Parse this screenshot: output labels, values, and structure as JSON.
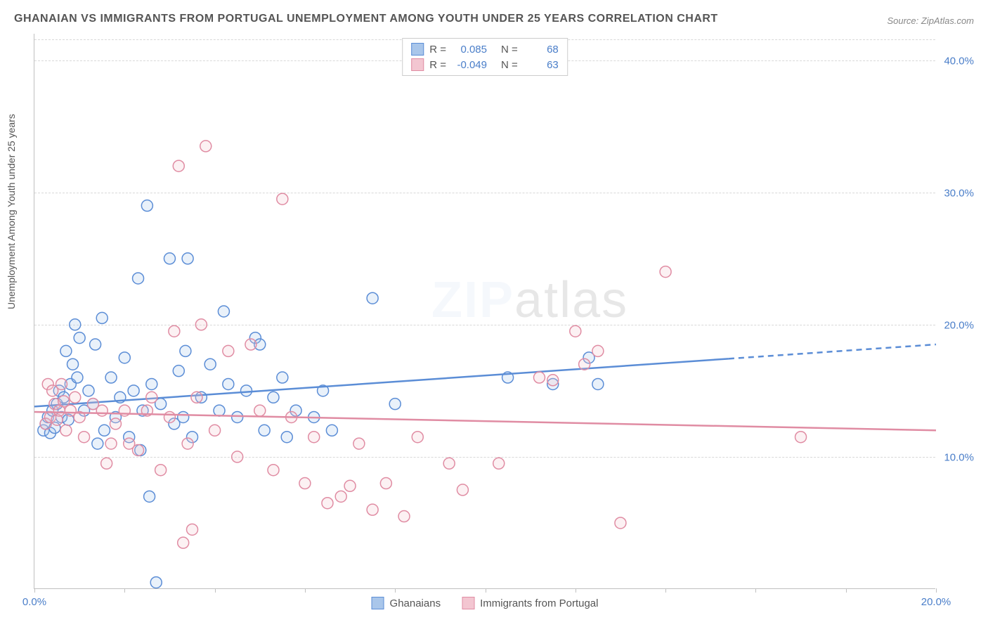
{
  "title": "GHANAIAN VS IMMIGRANTS FROM PORTUGAL UNEMPLOYMENT AMONG YOUTH UNDER 25 YEARS CORRELATION CHART",
  "source_label": "Source: ZipAtlas.com",
  "ylabel": "Unemployment Among Youth under 25 years",
  "watermark_a": "ZIP",
  "watermark_b": "atlas",
  "chart": {
    "type": "scatter",
    "background_color": "#ffffff",
    "grid_color": "#d8d8d8",
    "axis_color": "#c0c0c0",
    "xlim": [
      0,
      20
    ],
    "ylim": [
      0,
      42
    ],
    "x_ticks": [
      0,
      2,
      4,
      6,
      8,
      10,
      12,
      14,
      16,
      18,
      20
    ],
    "x_tick_labels_shown": {
      "0": "0.0%",
      "20": "20.0%"
    },
    "y_gridlines": [
      10,
      20,
      30,
      40
    ],
    "y_tick_labels": {
      "10": "10.0%",
      "20": "20.0%",
      "30": "30.0%",
      "40": "40.0%"
    },
    "marker_radius": 8,
    "marker_stroke_width": 1.5,
    "marker_fill_opacity": 0.25,
    "trend_line_width": 2.5,
    "tick_label_color": "#4a7ec9",
    "label_fontsize": 15
  },
  "series": [
    {
      "name": "Ghanaians",
      "color_stroke": "#5b8dd6",
      "color_fill": "#a9c6ea",
      "R_label": "R =",
      "R": "0.085",
      "N_label": "N =",
      "N": "68",
      "trend": {
        "y_at_x0": 13.8,
        "y_at_x20": 18.5,
        "solid_until_x": 15.4
      },
      "points": [
        [
          0.2,
          12.0
        ],
        [
          0.25,
          12.5
        ],
        [
          0.3,
          13.0
        ],
        [
          0.35,
          11.8
        ],
        [
          0.4,
          13.5
        ],
        [
          0.45,
          12.2
        ],
        [
          0.5,
          14.0
        ],
        [
          0.55,
          15.0
        ],
        [
          0.6,
          13.0
        ],
        [
          0.65,
          14.5
        ],
        [
          0.7,
          18.0
        ],
        [
          0.75,
          12.8
        ],
        [
          0.8,
          15.5
        ],
        [
          0.85,
          17.0
        ],
        [
          0.9,
          20.0
        ],
        [
          0.95,
          16.0
        ],
        [
          1.0,
          19.0
        ],
        [
          1.1,
          13.5
        ],
        [
          1.2,
          15.0
        ],
        [
          1.3,
          14.0
        ],
        [
          1.35,
          18.5
        ],
        [
          1.4,
          11.0
        ],
        [
          1.5,
          20.5
        ],
        [
          1.55,
          12.0
        ],
        [
          1.7,
          16.0
        ],
        [
          1.8,
          13.0
        ],
        [
          1.9,
          14.5
        ],
        [
          2.0,
          17.5
        ],
        [
          2.1,
          11.5
        ],
        [
          2.2,
          15.0
        ],
        [
          2.3,
          23.5
        ],
        [
          2.35,
          10.5
        ],
        [
          2.4,
          13.5
        ],
        [
          2.5,
          29.0
        ],
        [
          2.55,
          7.0
        ],
        [
          2.6,
          15.5
        ],
        [
          2.7,
          0.5
        ],
        [
          2.8,
          14.0
        ],
        [
          3.0,
          25.0
        ],
        [
          3.1,
          12.5
        ],
        [
          3.2,
          16.5
        ],
        [
          3.3,
          13.0
        ],
        [
          3.35,
          18.0
        ],
        [
          3.4,
          25.0
        ],
        [
          3.5,
          11.5
        ],
        [
          3.7,
          14.5
        ],
        [
          3.9,
          17.0
        ],
        [
          4.1,
          13.5
        ],
        [
          4.2,
          21.0
        ],
        [
          4.3,
          15.5
        ],
        [
          4.5,
          13.0
        ],
        [
          4.7,
          15.0
        ],
        [
          4.9,
          19.0
        ],
        [
          5.0,
          18.5
        ],
        [
          5.1,
          12.0
        ],
        [
          5.3,
          14.5
        ],
        [
          5.5,
          16.0
        ],
        [
          5.6,
          11.5
        ],
        [
          5.8,
          13.5
        ],
        [
          6.2,
          13.0
        ],
        [
          6.4,
          15.0
        ],
        [
          6.6,
          12.0
        ],
        [
          7.5,
          22.0
        ],
        [
          8.0,
          14.0
        ],
        [
          10.5,
          16.0
        ],
        [
          11.5,
          15.5
        ],
        [
          12.3,
          17.5
        ],
        [
          12.5,
          15.5
        ]
      ]
    },
    {
      "name": "Immigrants from Portugal",
      "color_stroke": "#e08ca3",
      "color_fill": "#f3c6d1",
      "R_label": "R =",
      "R": "-0.049",
      "N_label": "N =",
      "N": "63",
      "trend": {
        "y_at_x0": 13.4,
        "y_at_x20": 12.0,
        "solid_until_x": 20
      },
      "points": [
        [
          0.25,
          12.5
        ],
        [
          0.3,
          15.5
        ],
        [
          0.35,
          13.0
        ],
        [
          0.4,
          15.0
        ],
        [
          0.45,
          14.0
        ],
        [
          0.5,
          12.8
        ],
        [
          0.55,
          13.5
        ],
        [
          0.6,
          15.5
        ],
        [
          0.65,
          14.2
        ],
        [
          0.7,
          12.0
        ],
        [
          0.8,
          13.5
        ],
        [
          0.9,
          14.5
        ],
        [
          1.0,
          13.0
        ],
        [
          1.1,
          11.5
        ],
        [
          1.3,
          14.0
        ],
        [
          1.5,
          13.5
        ],
        [
          1.6,
          9.5
        ],
        [
          1.7,
          11.0
        ],
        [
          1.8,
          12.5
        ],
        [
          2.0,
          13.5
        ],
        [
          2.1,
          11.0
        ],
        [
          2.3,
          10.5
        ],
        [
          2.5,
          13.5
        ],
        [
          2.6,
          14.5
        ],
        [
          2.8,
          9.0
        ],
        [
          3.0,
          13.0
        ],
        [
          3.1,
          19.5
        ],
        [
          3.2,
          32.0
        ],
        [
          3.3,
          3.5
        ],
        [
          3.4,
          11.0
        ],
        [
          3.5,
          4.5
        ],
        [
          3.6,
          14.5
        ],
        [
          3.7,
          20.0
        ],
        [
          3.8,
          33.5
        ],
        [
          4.0,
          12.0
        ],
        [
          4.3,
          18.0
        ],
        [
          4.5,
          10.0
        ],
        [
          4.8,
          18.5
        ],
        [
          5.0,
          13.5
        ],
        [
          5.3,
          9.0
        ],
        [
          5.5,
          29.5
        ],
        [
          5.7,
          13.0
        ],
        [
          6.0,
          8.0
        ],
        [
          6.2,
          11.5
        ],
        [
          6.5,
          6.5
        ],
        [
          6.8,
          7.0
        ],
        [
          7.0,
          7.8
        ],
        [
          7.2,
          11.0
        ],
        [
          7.5,
          6.0
        ],
        [
          7.8,
          8.0
        ],
        [
          8.2,
          5.5
        ],
        [
          8.5,
          11.5
        ],
        [
          9.2,
          9.5
        ],
        [
          9.5,
          7.5
        ],
        [
          10.3,
          9.5
        ],
        [
          11.2,
          16.0
        ],
        [
          11.5,
          15.8
        ],
        [
          12.0,
          19.5
        ],
        [
          12.5,
          18.0
        ],
        [
          13.0,
          5.0
        ],
        [
          14.0,
          24.0
        ],
        [
          17.0,
          11.5
        ],
        [
          12.2,
          17.0
        ]
      ]
    }
  ],
  "legend": {
    "item1": "Ghanaians",
    "item2": "Immigrants from Portugal"
  }
}
